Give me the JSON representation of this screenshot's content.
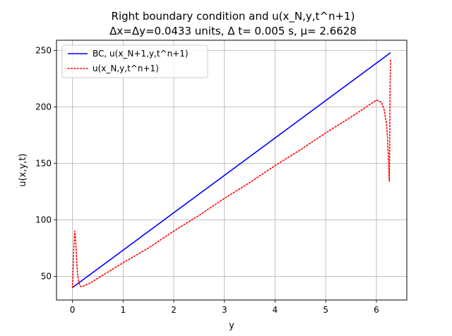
{
  "chart_data": {
    "type": "line",
    "title_line1": "Right boundary condition and u(x_N,y,t^n+1)",
    "title_line2": "Δx=Δy=0.0433 units, Δ t= 0.005 s, μ= 2.6628",
    "xlabel": "y",
    "ylabel": "u(x,y,t)",
    "xlim": [
      -0.315,
      6.6
    ],
    "ylim": [
      29,
      259
    ],
    "xticks": [
      0,
      1,
      2,
      3,
      4,
      5,
      6
    ],
    "yticks": [
      50,
      100,
      150,
      200,
      250
    ],
    "grid": true,
    "legend_position": "upper-left",
    "series": [
      {
        "name": "BC, u(x_N+1,y,t^n+1)",
        "color": "#0000ff",
        "style": "solid",
        "x": [
          0,
          6.28
        ],
        "y": [
          40,
          248
        ]
      },
      {
        "name": "u(x_N,y,t^n+1)",
        "color": "#ff0000",
        "style": "dotted",
        "x": [
          0,
          0.015,
          0.03,
          0.045,
          0.06,
          0.08,
          0.1,
          0.13,
          0.16,
          0.2,
          0.25,
          0.35,
          0.6,
          1.0,
          1.5,
          2.0,
          2.5,
          3.0,
          3.5,
          4.0,
          4.5,
          5.0,
          5.5,
          5.8,
          6.0,
          6.1,
          6.15,
          6.2,
          6.22,
          6.24,
          6.25,
          6.255,
          6.26,
          6.265,
          6.27,
          6.28
        ],
        "y": [
          40,
          58,
          80,
          90,
          84,
          68,
          52,
          44,
          41,
          41,
          42,
          44,
          51,
          62,
          75,
          90,
          104,
          119,
          133,
          148,
          162,
          177,
          191,
          200,
          206,
          204,
          198,
          185,
          172,
          152,
          138,
          134,
          150,
          185,
          220,
          242
        ]
      }
    ]
  }
}
